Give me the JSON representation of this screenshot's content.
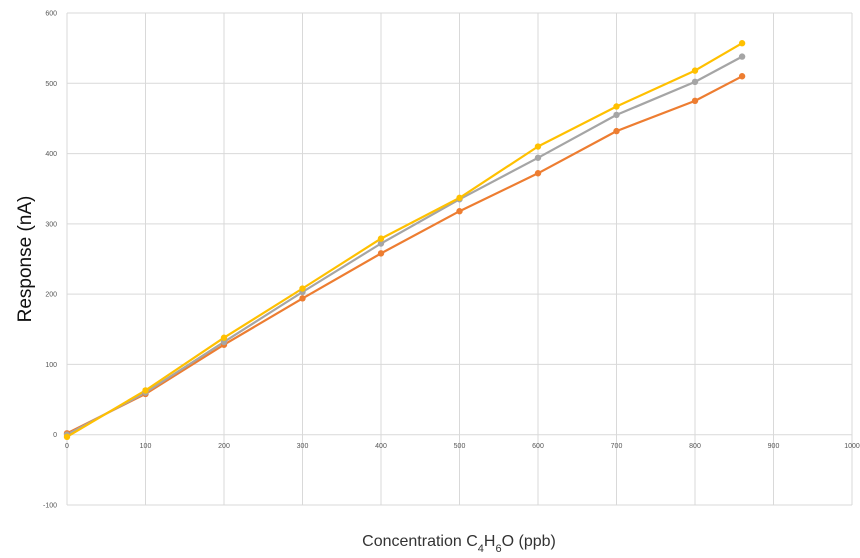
{
  "chart_data": {
    "type": "line",
    "title": "",
    "ylabel": "Response  (nA)",
    "xlabel": {
      "parts": [
        {
          "text": "Concentration C",
          "sub": false
        },
        {
          "text": "4",
          "sub": true
        },
        {
          "text": "H",
          "sub": false
        },
        {
          "text": "6",
          "sub": true
        },
        {
          "text": "O (ppb)",
          "sub": false
        }
      ]
    },
    "xlim": [
      0,
      1000
    ],
    "ylim": [
      -100,
      600
    ],
    "xticks": [
      0,
      100,
      200,
      300,
      400,
      500,
      600,
      700,
      800,
      900,
      1000
    ],
    "xtick_labels": [
      "0",
      "100",
      "200",
      "300",
      "400",
      "500",
      "600",
      "700",
      "800",
      "900",
      "1000"
    ],
    "yticks": [
      -100,
      0,
      100,
      200,
      300,
      400,
      500,
      600
    ],
    "ytick_labels": [
      "-100",
      "0",
      "100",
      "200",
      "300",
      "400",
      "500",
      "600"
    ],
    "grid": true,
    "legend": "none",
    "x": [
      0,
      100,
      200,
      300,
      400,
      500,
      600,
      700,
      800,
      860
    ],
    "series": [
      {
        "color": "#ED7D31",
        "values": [
          2,
          58,
          128,
          194,
          258,
          318,
          372,
          432,
          475,
          510
        ]
      },
      {
        "color": "#A5A5A5",
        "values": [
          0,
          60,
          132,
          203,
          272,
          335,
          394,
          455,
          502,
          538
        ]
      },
      {
        "color": "#FFC000",
        "values": [
          -3,
          63,
          138,
          208,
          279,
          337,
          410,
          467,
          518,
          557
        ]
      }
    ]
  }
}
